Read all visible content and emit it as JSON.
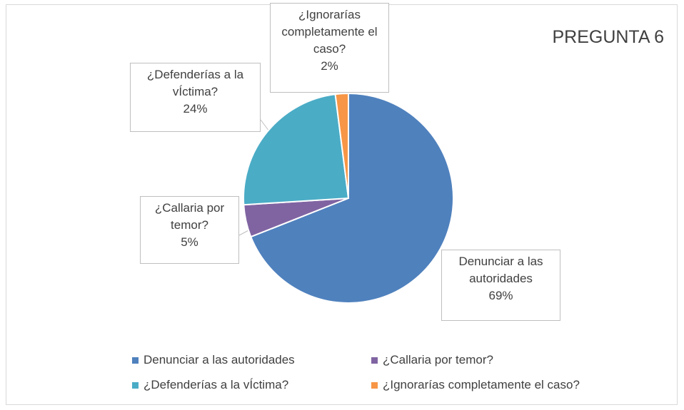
{
  "chart_data": {
    "type": "pie",
    "title": "PREGUNTA 6",
    "categories": [
      "Denunciar a las autoridades",
      "¿Callaria por temor?",
      "¿Defenderías a la vÍctima?",
      "¿Ignorarías completamente el caso?"
    ],
    "values": [
      69,
      5,
      24,
      2
    ],
    "value_labels": [
      "69%",
      "5%",
      "24%",
      "2%"
    ],
    "colors": [
      "#4f81bd",
      "#8064a2",
      "#4bacc6",
      "#f79646"
    ],
    "legend": "bottom"
  }
}
